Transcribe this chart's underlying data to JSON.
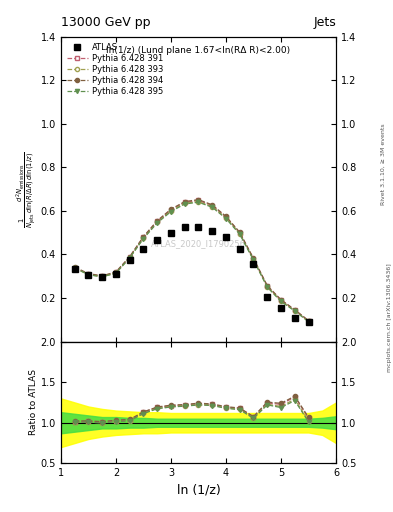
{
  "title_top": "13000 GeV pp",
  "title_right": "Jets",
  "plot_title": "ln(1/z) (Lund plane 1.67<ln(RΔ R)<2.00)",
  "xlabel": "ln (1/z)",
  "ylabel_ratio": "Ratio to ATLAS",
  "right_label": "Rivet 3.1.10, ≥ 3M events",
  "right_label2": "mcplots.cern.ch [arXiv:1306.3436]",
  "watermark": "ATLAS_2020_I1790256",
  "xlim": [
    1.0,
    6.0
  ],
  "ylim_main": [
    0.0,
    1.4
  ],
  "ylim_ratio": [
    0.5,
    2.0
  ],
  "atlas_x": [
    1.25,
    1.5,
    1.75,
    2.0,
    2.25,
    2.5,
    2.75,
    3.0,
    3.25,
    3.5,
    3.75,
    4.0,
    4.25,
    4.5,
    4.75,
    5.0,
    5.25,
    5.5
  ],
  "atlas_y": [
    0.335,
    0.305,
    0.298,
    0.31,
    0.375,
    0.425,
    0.465,
    0.5,
    0.525,
    0.525,
    0.51,
    0.48,
    0.425,
    0.355,
    0.205,
    0.155,
    0.11,
    0.09
  ],
  "py391_x": [
    1.25,
    1.5,
    1.75,
    2.0,
    2.25,
    2.5,
    2.75,
    3.0,
    3.25,
    3.5,
    3.75,
    4.0,
    4.25,
    4.5,
    4.75,
    5.0,
    5.25,
    5.5
  ],
  "py391_y": [
    0.34,
    0.31,
    0.3,
    0.318,
    0.388,
    0.48,
    0.552,
    0.605,
    0.64,
    0.648,
    0.625,
    0.572,
    0.5,
    0.38,
    0.255,
    0.19,
    0.145,
    0.095
  ],
  "py393_x": [
    1.25,
    1.5,
    1.75,
    2.0,
    2.25,
    2.5,
    2.75,
    3.0,
    3.25,
    3.5,
    3.75,
    4.0,
    4.25,
    4.5,
    4.75,
    5.0,
    5.25,
    5.5
  ],
  "py393_y": [
    0.338,
    0.307,
    0.298,
    0.315,
    0.385,
    0.475,
    0.548,
    0.6,
    0.635,
    0.643,
    0.62,
    0.568,
    0.496,
    0.376,
    0.252,
    0.186,
    0.142,
    0.092
  ],
  "py394_x": [
    1.25,
    1.5,
    1.75,
    2.0,
    2.25,
    2.5,
    2.75,
    3.0,
    3.25,
    3.5,
    3.75,
    4.0,
    4.25,
    4.5,
    4.75,
    5.0,
    5.25,
    5.5
  ],
  "py394_y": [
    0.342,
    0.312,
    0.302,
    0.32,
    0.39,
    0.482,
    0.555,
    0.608,
    0.643,
    0.652,
    0.628,
    0.575,
    0.502,
    0.382,
    0.257,
    0.192,
    0.146,
    0.096
  ],
  "py395_x": [
    1.25,
    1.5,
    1.75,
    2.0,
    2.25,
    2.5,
    2.75,
    3.0,
    3.25,
    3.5,
    3.75,
    4.0,
    4.25,
    4.5,
    4.75,
    5.0,
    5.25,
    5.5
  ],
  "py395_y": [
    0.338,
    0.307,
    0.297,
    0.314,
    0.384,
    0.473,
    0.545,
    0.597,
    0.632,
    0.64,
    0.617,
    0.565,
    0.493,
    0.374,
    0.25,
    0.184,
    0.14,
    0.091
  ],
  "color_391": "#c06070",
  "color_393": "#a0a050",
  "color_394": "#806040",
  "color_395": "#609050",
  "ratio_x": [
    1.25,
    1.5,
    1.75,
    2.0,
    2.25,
    2.5,
    2.75,
    3.0,
    3.25,
    3.5,
    3.75,
    4.0,
    4.25,
    4.5,
    4.75,
    5.0,
    5.25,
    5.5
  ],
  "ratio_391": [
    1.015,
    1.016,
    1.007,
    1.026,
    1.035,
    1.13,
    1.188,
    1.21,
    1.219,
    1.234,
    1.225,
    1.192,
    1.176,
    1.07,
    1.244,
    1.226,
    1.318,
    1.056
  ],
  "ratio_393": [
    1.009,
    1.007,
    1.0,
    1.016,
    1.027,
    1.118,
    1.178,
    1.2,
    1.21,
    1.224,
    1.216,
    1.183,
    1.167,
    1.059,
    1.229,
    1.2,
    1.291,
    1.022
  ],
  "ratio_394": [
    1.021,
    1.023,
    1.013,
    1.032,
    1.04,
    1.134,
    1.194,
    1.216,
    1.224,
    1.241,
    1.231,
    1.198,
    1.181,
    1.076,
    1.254,
    1.239,
    1.327,
    1.067
  ],
  "ratio_395": [
    1.009,
    1.007,
    0.997,
    1.013,
    1.024,
    1.113,
    1.172,
    1.194,
    1.204,
    1.219,
    1.212,
    1.177,
    1.161,
    1.053,
    1.22,
    1.187,
    1.273,
    1.011
  ],
  "ratio_green_x": [
    1.0,
    1.25,
    1.5,
    1.75,
    2.0,
    2.25,
    2.5,
    2.75,
    3.0,
    3.25,
    3.5,
    3.75,
    4.0,
    4.25,
    4.5,
    4.75,
    5.0,
    5.25,
    5.5,
    5.75,
    6.0
  ],
  "ratio_green_lo": [
    0.87,
    0.89,
    0.91,
    0.93,
    0.93,
    0.94,
    0.94,
    0.95,
    0.95,
    0.95,
    0.95,
    0.95,
    0.95,
    0.95,
    0.95,
    0.95,
    0.95,
    0.95,
    0.95,
    0.94,
    0.92
  ],
  "ratio_green_hi": [
    1.13,
    1.11,
    1.09,
    1.07,
    1.07,
    1.06,
    1.06,
    1.05,
    1.05,
    1.05,
    1.05,
    1.05,
    1.05,
    1.05,
    1.05,
    1.05,
    1.05,
    1.05,
    1.05,
    1.06,
    1.08
  ],
  "ratio_yellow_x": [
    1.0,
    1.25,
    1.5,
    1.75,
    2.0,
    2.25,
    2.5,
    2.75,
    3.0,
    3.25,
    3.5,
    3.75,
    4.0,
    4.25,
    4.5,
    4.75,
    5.0,
    5.25,
    5.5,
    5.75,
    6.0
  ],
  "ratio_yellow_lo": [
    0.7,
    0.75,
    0.8,
    0.83,
    0.85,
    0.86,
    0.87,
    0.87,
    0.88,
    0.88,
    0.88,
    0.88,
    0.88,
    0.88,
    0.88,
    0.88,
    0.88,
    0.88,
    0.88,
    0.85,
    0.75
  ],
  "ratio_yellow_hi": [
    1.3,
    1.25,
    1.2,
    1.17,
    1.15,
    1.14,
    1.13,
    1.13,
    1.12,
    1.12,
    1.12,
    1.12,
    1.12,
    1.12,
    1.12,
    1.12,
    1.12,
    1.12,
    1.12,
    1.15,
    1.25
  ],
  "xticks": [
    1,
    2,
    3,
    4,
    5,
    6
  ],
  "yticks_main": [
    0.2,
    0.4,
    0.6,
    0.8,
    1.0,
    1.2,
    1.4
  ],
  "yticks_ratio": [
    0.5,
    1.0,
    1.5,
    2.0
  ]
}
